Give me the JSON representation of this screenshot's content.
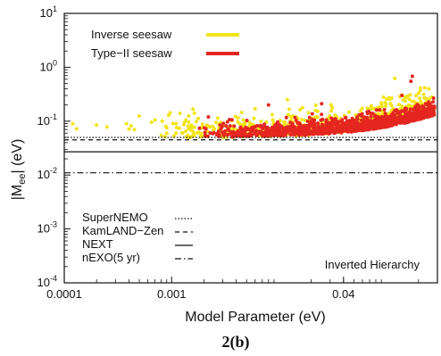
{
  "chart_data": {
    "type": "scatter",
    "xlabel": "Model Parameter (eV)",
    "ylabel_main": "|M",
    "ylabel_sub": "ee",
    "ylabel_tail": "| (eV)",
    "x_scale": "log",
    "y_scale": "log",
    "xlim": [
      0.0001,
      0.3
    ],
    "ylim": [
      0.0001,
      10
    ],
    "grid": false,
    "x_ticks": [
      {
        "value": 0.0001,
        "label": "0.0001"
      },
      {
        "value": 0.001,
        "label": "0.001"
      },
      {
        "value": 0.04,
        "label": "0.04"
      }
    ],
    "y_ticks": [
      {
        "value": 0.0001,
        "base": "10",
        "exp": "-4"
      },
      {
        "value": 0.001,
        "base": "10",
        "exp": "-3"
      },
      {
        "value": 0.01,
        "base": "10",
        "exp": "-2"
      },
      {
        "value": 0.1,
        "base": "10",
        "exp": "-1"
      },
      {
        "value": 1,
        "base": "10",
        "exp": "0"
      },
      {
        "value": 10,
        "base": "10",
        "exp": "1"
      }
    ],
    "series": [
      {
        "name": "Inverse seesaw",
        "color": "#f2e41a",
        "mark": "point"
      },
      {
        "name": "Type−II seesaw",
        "color": "#e52620",
        "mark": "point"
      }
    ],
    "limits": [
      {
        "name": "SuperNEMO",
        "value": 0.05,
        "style": "dotted"
      },
      {
        "name": "KamLAND−Zen",
        "value": 0.045,
        "style": "dashed"
      },
      {
        "name": "NEXT",
        "value": 0.027,
        "style": "solid"
      },
      {
        "name": "nEXO(5 yr)",
        "value": 0.011,
        "style": "dashdot"
      }
    ],
    "annotation": "Inverted Hierarchy"
  },
  "caption": "2(b)"
}
